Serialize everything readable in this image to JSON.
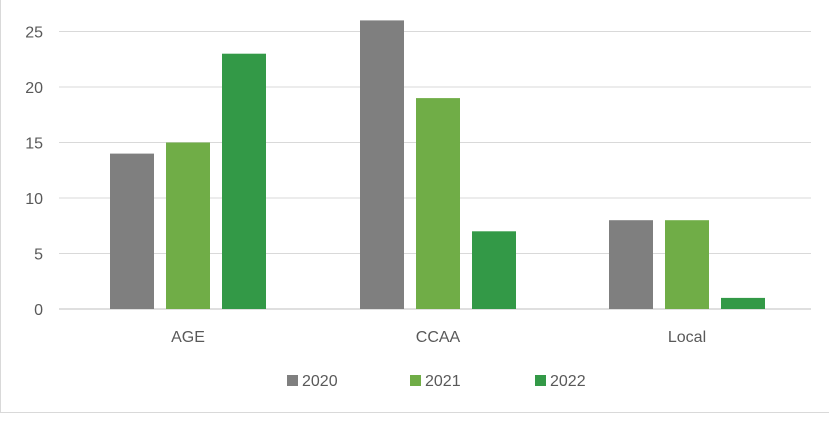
{
  "chart_data": {
    "type": "bar",
    "categories": [
      "AGE",
      "CCAA",
      "Local"
    ],
    "series": [
      {
        "name": "2020",
        "color": "#7f7f7f",
        "values": [
          14,
          26,
          8
        ]
      },
      {
        "name": "2021",
        "color": "#70ad47",
        "values": [
          15,
          19,
          8
        ]
      },
      {
        "name": "2022",
        "color": "#339947",
        "values": [
          23,
          7,
          1
        ]
      }
    ],
    "y_ticks": [
      "0",
      "5",
      "10",
      "15",
      "20",
      "25"
    ],
    "ylim": [
      0,
      26
    ],
    "grid": true,
    "legend_position": "bottom"
  }
}
